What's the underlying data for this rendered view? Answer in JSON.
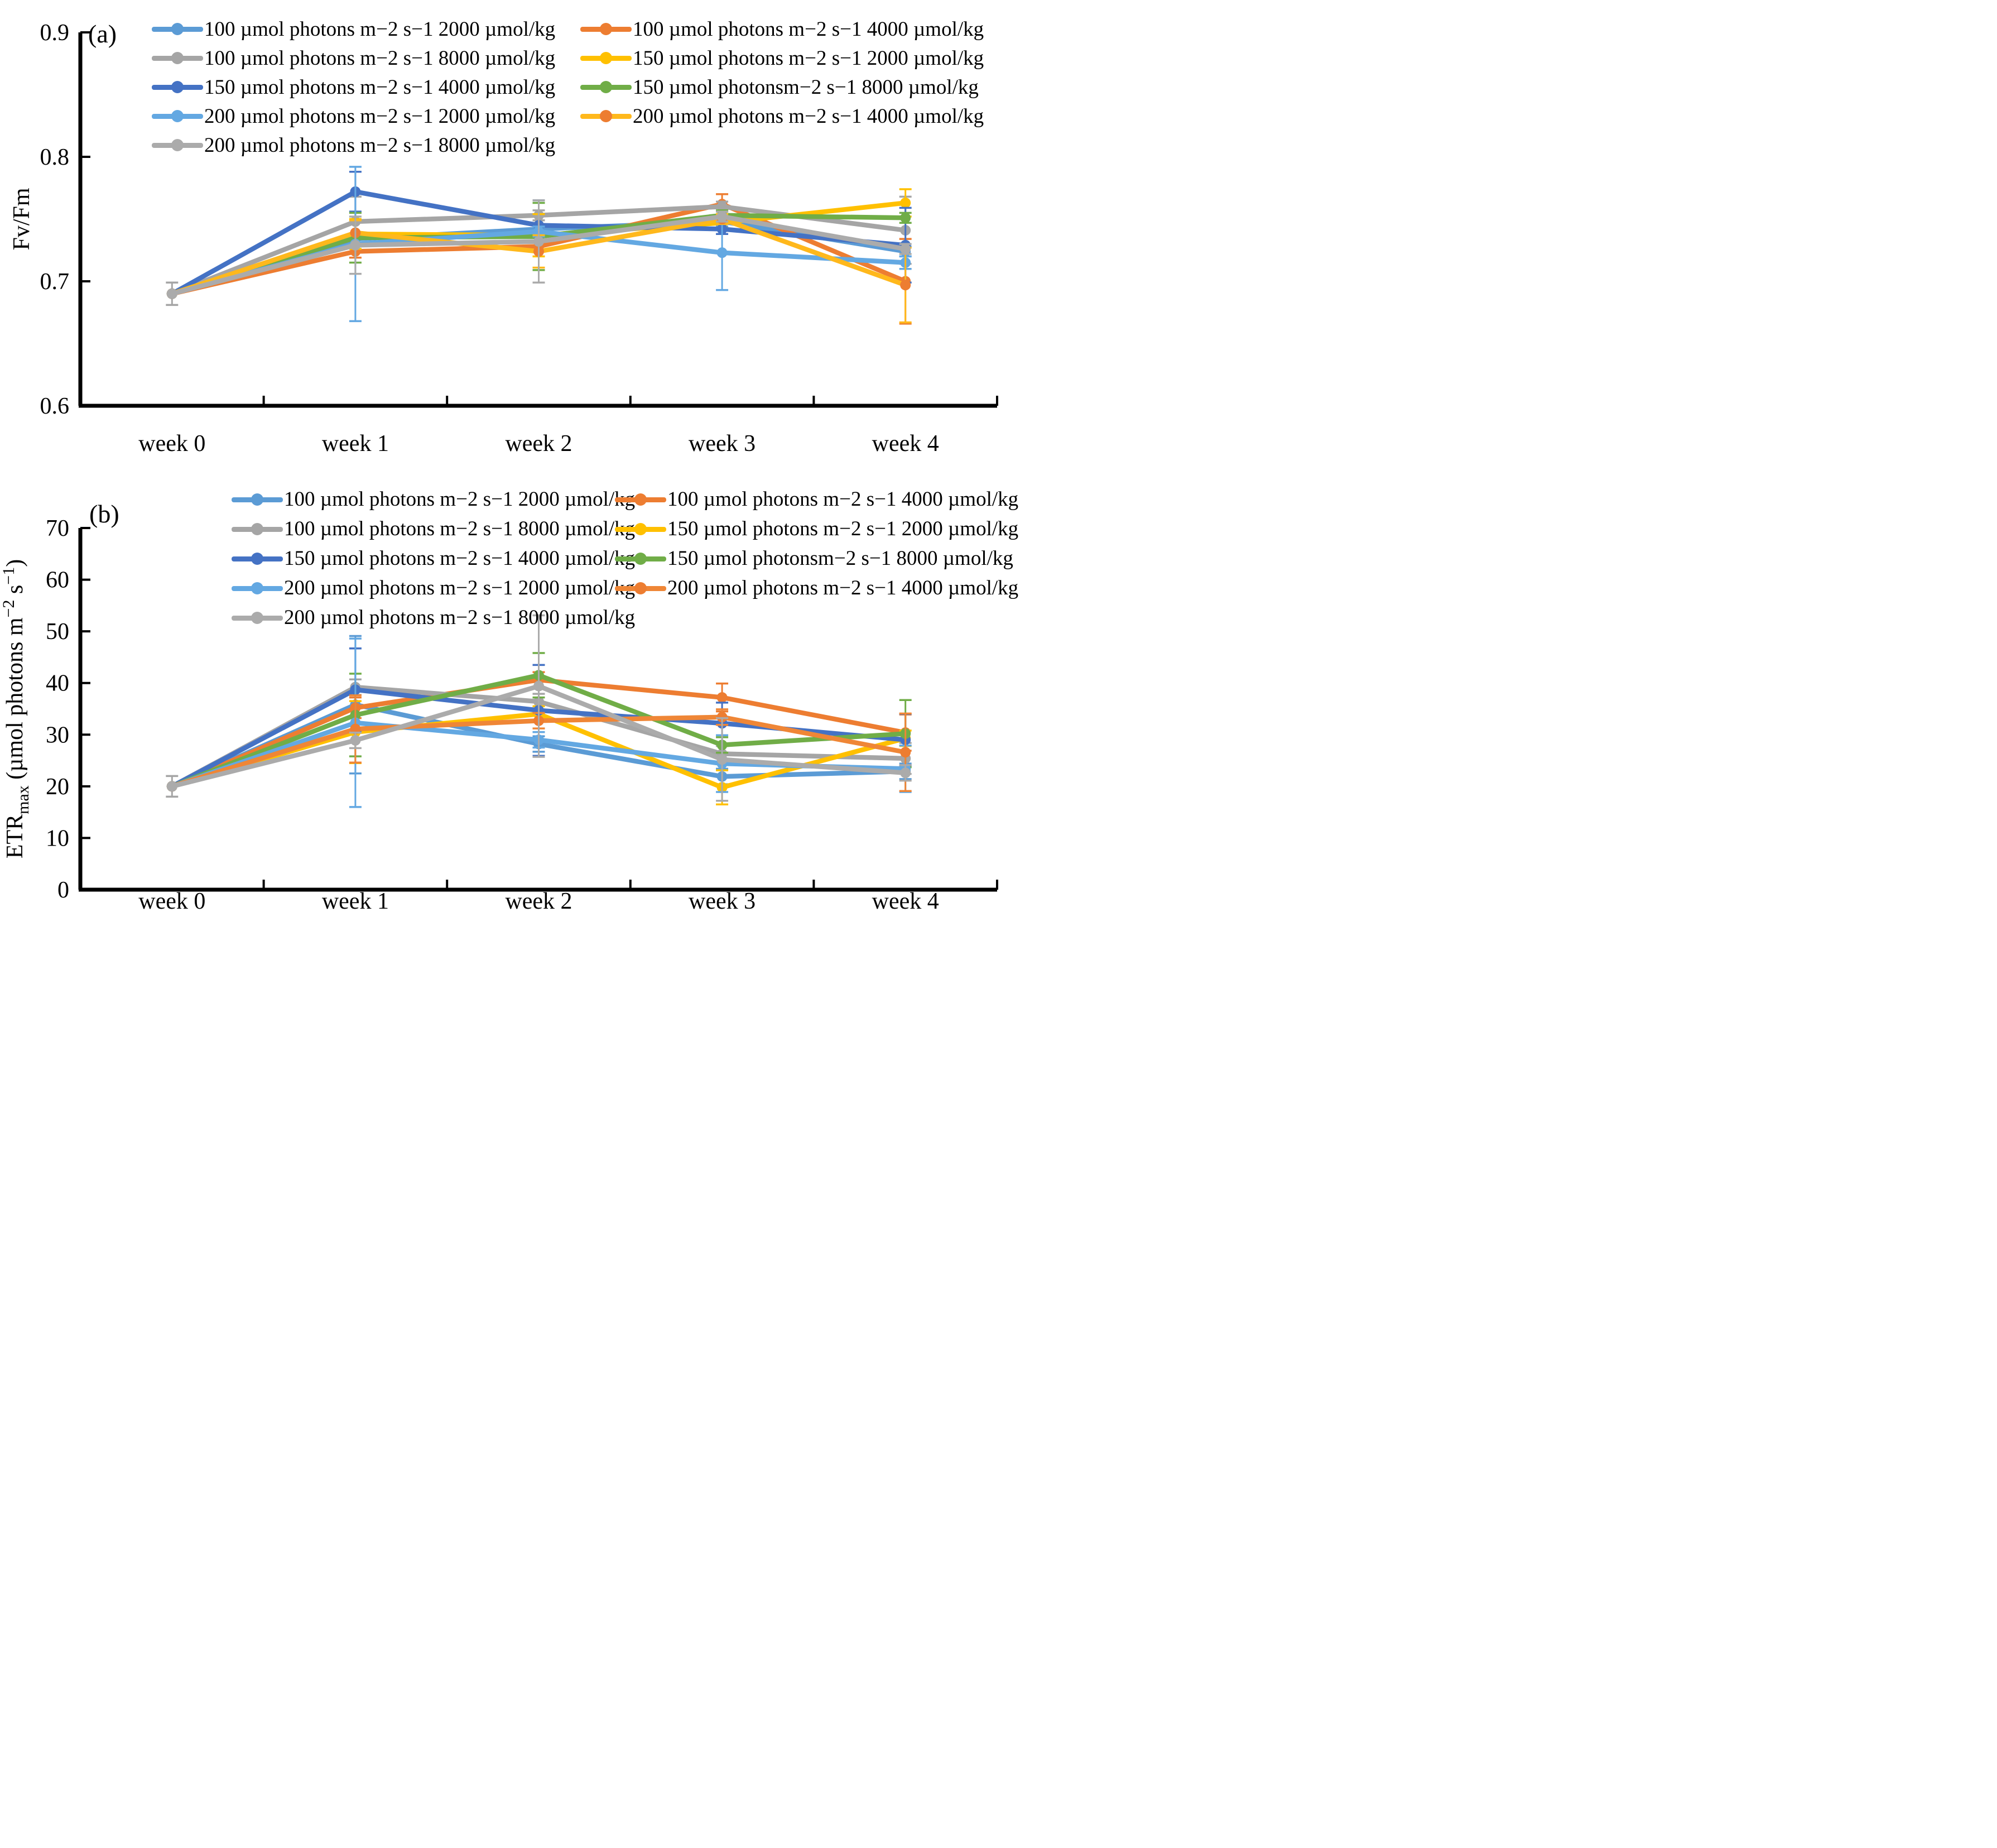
{
  "figure": {
    "background": "#ffffff"
  },
  "chart_data": [
    {
      "id": "panel-a",
      "panel_label": "(a)",
      "type": "line",
      "categories": [
        "week 0",
        "week 1",
        "week 2",
        "week 3",
        "week 4"
      ],
      "ylabel_parts": [
        {
          "t": "Fv/Fm",
          "style": "normal"
        }
      ],
      "ylim": [
        0.6,
        0.9
      ],
      "yticks": [
        0.9,
        0.8,
        0.7,
        0.6
      ],
      "ytick_labels": [
        "0.9",
        "0.8",
        "0.7",
        "0.6"
      ],
      "grid": false,
      "legend_position": "top-inside",
      "series": [
        {
          "name": "100 µmol photons m−2 s−1 2000 µmol/kg",
          "line_color": "#5B9BD5",
          "marker_color": "#5B9BD5",
          "values": [
            0.69,
            0.734,
            0.742,
            0.748,
            0.724
          ],
          "err": [
            0,
            0.004,
            0.004,
            0.004,
            0.004
          ]
        },
        {
          "name": "100 µmol photons m−2 s−1 4000 µmol/kg",
          "line_color": "#ED7D31",
          "marker_color": "#ED7D31",
          "values": [
            0.69,
            0.724,
            0.728,
            0.762,
            0.7
          ],
          "err": [
            0,
            0.005,
            0.004,
            0.008,
            0.034
          ]
        },
        {
          "name": "100 µmol photons m−2 s−1 8000 µmol/kg",
          "line_color": "#A5A5A5",
          "marker_color": "#A5A5A5",
          "values": [
            0.69,
            0.748,
            0.753,
            0.76,
            0.741
          ],
          "err": [
            0.009,
            0.02,
            0.004,
            0.004,
            0.027
          ]
        },
        {
          "name": "150 µmol photons m−2 s−1 2000 µmol/kg",
          "line_color": "#FFC000",
          "marker_color": "#FFC000",
          "values": [
            0.69,
            0.738,
            0.737,
            0.747,
            0.763
          ],
          "err": [
            0,
            0.012,
            0.017,
            0.004,
            0.011
          ]
        },
        {
          "name": "150 µmol photons m−2 s−1 4000 µmol/kg",
          "line_color": "#4472C4",
          "marker_color": "#4472C4",
          "values": [
            0.69,
            0.772,
            0.745,
            0.742,
            0.729
          ],
          "err": [
            0,
            0.016,
            0.02,
            0.004,
            0.03
          ]
        },
        {
          "name": "150 µmol photonsm−2 s−1 8000 µmol/kg",
          "line_color": "#70AD47",
          "marker_color": "#70AD47",
          "values": [
            0.69,
            0.735,
            0.736,
            0.753,
            0.751
          ],
          "err": [
            0,
            0.02,
            0.027,
            0.004,
            0.004
          ]
        },
        {
          "name": "200 µmol photons m−2 s−1 2000 µmol/kg",
          "line_color": "#63A8E2",
          "marker_color": "#63A8E2",
          "values": [
            0.69,
            0.73,
            0.74,
            0.723,
            0.715
          ],
          "err": [
            0,
            0.062,
            0.004,
            0.03,
            0.005
          ]
        },
        {
          "name": "200 µmol photons m−2 s−1 4000 µmol/kg",
          "line_color": "#FFB81C",
          "marker_color": "#ED7D31",
          "values": [
            0.69,
            0.739,
            0.724,
            0.75,
            0.697
          ],
          "err": [
            0,
            0.01,
            0.013,
            0.004,
            0.03
          ]
        },
        {
          "name": "200 µmol photons m−2 s−1 8000 µmol/kg",
          "line_color": "#ABABAB",
          "marker_color": "#ABABAB",
          "values": [
            0.69,
            0.729,
            0.732,
            0.752,
            0.726
          ],
          "err": [
            0,
            0.023,
            0.033,
            0.004,
            0.004
          ]
        }
      ]
    },
    {
      "id": "panel-b",
      "panel_label": "(b)",
      "type": "line",
      "categories": [
        "week 0",
        "week 1",
        "week 2",
        "week 3",
        "week 4"
      ],
      "ylabel_parts": [
        {
          "t": "ETR",
          "style": "normal"
        },
        {
          "t": "max",
          "style": "sub"
        },
        {
          "t": " (µmol photons m",
          "style": "normal"
        },
        {
          "t": "−2",
          "style": "sup"
        },
        {
          "t": " s",
          "style": "normal"
        },
        {
          "t": "−1",
          "style": "sup"
        },
        {
          "t": ")",
          "style": "normal"
        }
      ],
      "ylim": [
        0,
        70
      ],
      "yticks": [
        70,
        60,
        50,
        40,
        30,
        20,
        10,
        0
      ],
      "ytick_labels": [
        "70",
        "60",
        "50",
        "40",
        "30",
        "20",
        "10",
        "0"
      ],
      "grid": false,
      "legend_position": "top-inside",
      "series": [
        {
          "name": "100 µmol photons m−2 s−1 2000 µmol/kg",
          "line_color": "#5B9BD5",
          "marker_color": "#5B9BD5",
          "values": [
            20.0,
            35.8,
            28.2,
            21.9,
            22.9
          ],
          "err": [
            0,
            13.3,
            1.5,
            1.5,
            1.5
          ]
        },
        {
          "name": "100 µmol photons m−2 s−1 4000 µmol/kg",
          "line_color": "#ED7D31",
          "marker_color": "#ED7D31",
          "values": [
            20.0,
            35.2,
            40.6,
            37.2,
            30.4
          ],
          "err": [
            0,
            2.0,
            1.5,
            2.7,
            3.5
          ]
        },
        {
          "name": "100 µmol photons m−2 s−1 8000 µmol/kg",
          "line_color": "#A5A5A5",
          "marker_color": "#A5A5A5",
          "values": [
            20.0,
            39.2,
            36.4,
            26.3,
            25.4
          ],
          "err": [
            2.0,
            1.5,
            1.5,
            1.5,
            3.0
          ]
        },
        {
          "name": "150 µmol photons m−2 s−1 2000 µmol/kg",
          "line_color": "#FFC000",
          "marker_color": "#FFC000",
          "values": [
            20.0,
            30.5,
            34.0,
            19.8,
            29.3
          ],
          "err": [
            0,
            6.0,
            1.5,
            3.3,
            1.5
          ]
        },
        {
          "name": "150 µmol photons m−2 s−1 4000 µmol/kg",
          "line_color": "#4472C4",
          "marker_color": "#4472C4",
          "values": [
            20.0,
            38.7,
            34.7,
            32.2,
            29.0
          ],
          "err": [
            0,
            8.0,
            8.8,
            4.0,
            5.0
          ]
        },
        {
          "name": "150 µmol photonsm−2 s−1 8000 µmol/kg",
          "line_color": "#70AD47",
          "marker_color": "#70AD47",
          "values": [
            20.0,
            33.8,
            41.5,
            28.0,
            30.2
          ],
          "err": [
            0,
            8.0,
            4.3,
            1.5,
            6.5
          ]
        },
        {
          "name": "200 µmol photons m−2 s−1 2000 µmol/kg",
          "line_color": "#63A8E2",
          "marker_color": "#63A8E2",
          "values": [
            20.0,
            32.3,
            29.0,
            24.4,
            23.4
          ],
          "err": [
            0,
            16.3,
            1.5,
            5.5,
            4.5
          ]
        },
        {
          "name": "200 µmol photons m−2 s−1 4000 µmol/kg",
          "line_color": "#EF8636",
          "marker_color": "#ED7D31",
          "values": [
            20.0,
            31.1,
            32.7,
            33.4,
            26.6
          ],
          "err": [
            0,
            6.5,
            1.5,
            1.5,
            7.5
          ]
        },
        {
          "name": "200 µmol photons m−2 s−1 8000 µmol/kg",
          "line_color": "#ABABAB",
          "marker_color": "#ABABAB",
          "values": [
            20.0,
            28.9,
            39.4,
            25.2,
            22.6
          ],
          "err": [
            0,
            1.5,
            13.7,
            8.0,
            1.5
          ]
        }
      ]
    }
  ]
}
